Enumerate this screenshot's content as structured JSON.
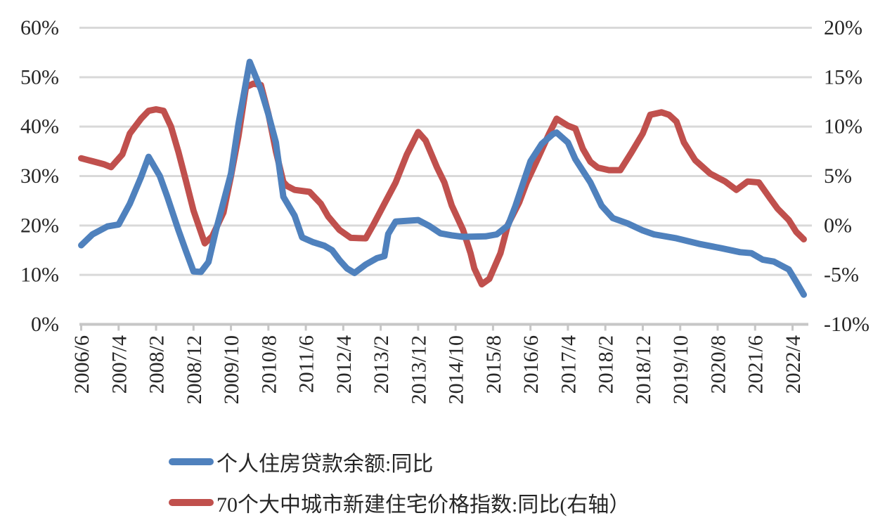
{
  "chart_data": {
    "type": "line",
    "title": "",
    "grid": true,
    "legend_position": "bottom-left",
    "background": "#ffffff",
    "gridline_color": "#d9d9d9",
    "axis_color": "#c6c6c6",
    "tick_label_color": "#262626",
    "x_ticks": [
      "2006/6",
      "2007/4",
      "2008/2",
      "2008/12",
      "2009/10",
      "2010/8",
      "2011/6",
      "2012/4",
      "2013/2",
      "2013/12",
      "2014/10",
      "2015/8",
      "2016/6",
      "2017/4",
      "2018/2",
      "2018/12",
      "2019/10",
      "2020/8",
      "2021/6",
      "2022/4"
    ],
    "y_left": {
      "min": 0,
      "max": 60,
      "step": 10,
      "ticks": [
        "0%",
        "10%",
        "20%",
        "30%",
        "40%",
        "50%",
        "60%"
      ]
    },
    "y_right": {
      "min": -10,
      "max": 20,
      "step": 5,
      "ticks": [
        "-10%",
        "-5%",
        "0%",
        "5%",
        "10%",
        "15%",
        "20%"
      ]
    },
    "series": [
      {
        "label": "个人住房贷款余额:同比",
        "axis": "left",
        "color": "#4f81bd",
        "points": [
          [
            "2006/6",
            16.0
          ],
          [
            "2006/9",
            18.2
          ],
          [
            "2007/1",
            19.8
          ],
          [
            "2007/4",
            20.2
          ],
          [
            "2007/7",
            24.4
          ],
          [
            "2007/10",
            29.8
          ],
          [
            "2007/12",
            33.9
          ],
          [
            "2008/3",
            30.0
          ],
          [
            "2008/5",
            25.8
          ],
          [
            "2008/8",
            19.0
          ],
          [
            "2008/10",
            14.8
          ],
          [
            "2008/12",
            10.7
          ],
          [
            "2009/2",
            10.6
          ],
          [
            "2009/4",
            12.6
          ],
          [
            "2009/6",
            19.0
          ],
          [
            "2009/10",
            30.5
          ],
          [
            "2009/12",
            40.5
          ],
          [
            "2010/3",
            53.1
          ],
          [
            "2010/6",
            47.5
          ],
          [
            "2010/8",
            42.5
          ],
          [
            "2010/10",
            36.8
          ],
          [
            "2010/12",
            25.8
          ],
          [
            "2011/3",
            22.0
          ],
          [
            "2011/5",
            17.6
          ],
          [
            "2011/8",
            16.6
          ],
          [
            "2011/11",
            15.9
          ],
          [
            "2012/1",
            15.0
          ],
          [
            "2012/3",
            13.0
          ],
          [
            "2012/5",
            11.3
          ],
          [
            "2012/7",
            10.4
          ],
          [
            "2012/10",
            12.1
          ],
          [
            "2013/1",
            13.4
          ],
          [
            "2013/3",
            13.8
          ],
          [
            "2013/4",
            18.3
          ],
          [
            "2013/6",
            20.8
          ],
          [
            "2013/12",
            21.1
          ],
          [
            "2014/3",
            19.9
          ],
          [
            "2014/6",
            18.4
          ],
          [
            "2014/9",
            18.0
          ],
          [
            "2014/12",
            17.7
          ],
          [
            "2015/6",
            17.8
          ],
          [
            "2015/9",
            18.2
          ],
          [
            "2015/12",
            20.0
          ],
          [
            "2016/2",
            24.0
          ],
          [
            "2016/4",
            28.5
          ],
          [
            "2016/6",
            33.0
          ],
          [
            "2016/9",
            36.5
          ],
          [
            "2016/12",
            38.5
          ],
          [
            "2017/1",
            38.8
          ],
          [
            "2017/4",
            36.8
          ],
          [
            "2017/6",
            33.4
          ],
          [
            "2017/10",
            28.7
          ],
          [
            "2018/1",
            24.0
          ],
          [
            "2018/4",
            21.5
          ],
          [
            "2018/8",
            20.4
          ],
          [
            "2018/12",
            19.0
          ],
          [
            "2019/3",
            18.2
          ],
          [
            "2019/9",
            17.4
          ],
          [
            "2020/3",
            16.3
          ],
          [
            "2020/9",
            15.4
          ],
          [
            "2021/2",
            14.6
          ],
          [
            "2021/5",
            14.4
          ],
          [
            "2021/8",
            13.1
          ],
          [
            "2021/11",
            12.7
          ],
          [
            "2022/2",
            11.5
          ],
          [
            "2022/3",
            11.1
          ],
          [
            "2022/5",
            8.6
          ],
          [
            "2022/7",
            6.0
          ]
        ]
      },
      {
        "label": "70个大中城市新建住宅价格指数:同比(右轴）",
        "axis": "right",
        "color": "#c0504d",
        "points": [
          [
            "2006/6",
            6.8
          ],
          [
            "2006/9",
            6.5
          ],
          [
            "2006/12",
            6.2
          ],
          [
            "2007/2",
            5.9
          ],
          [
            "2007/5",
            7.2
          ],
          [
            "2007/7",
            9.3
          ],
          [
            "2007/10",
            10.8
          ],
          [
            "2007/12",
            11.6
          ],
          [
            "2008/2",
            11.75
          ],
          [
            "2008/4",
            11.6
          ],
          [
            "2008/6",
            10.0
          ],
          [
            "2008/8",
            7.4
          ],
          [
            "2008/10",
            4.5
          ],
          [
            "2008/12",
            1.5
          ],
          [
            "2009/3",
            -1.8
          ],
          [
            "2009/5",
            -1.1
          ],
          [
            "2009/8",
            1.3
          ],
          [
            "2009/10",
            5.0
          ],
          [
            "2009/12",
            9.0
          ],
          [
            "2010/2",
            14.0
          ],
          [
            "2010/4",
            14.35
          ],
          [
            "2010/6",
            14.2
          ],
          [
            "2010/8",
            11.3
          ],
          [
            "2010/10",
            7.5
          ],
          [
            "2010/12",
            4.4
          ],
          [
            "2011/1",
            4.0
          ],
          [
            "2011/3",
            3.6
          ],
          [
            "2011/7",
            3.4
          ],
          [
            "2011/10",
            2.2
          ],
          [
            "2011/12",
            0.9
          ],
          [
            "2012/3",
            -0.45
          ],
          [
            "2012/6",
            -1.25
          ],
          [
            "2012/10",
            -1.3
          ],
          [
            "2012/12",
            0.05
          ],
          [
            "2013/3",
            2.2
          ],
          [
            "2013/6",
            4.35
          ],
          [
            "2013/9",
            7.2
          ],
          [
            "2013/12",
            9.45
          ],
          [
            "2014/2",
            8.6
          ],
          [
            "2014/5",
            5.9
          ],
          [
            "2014/7",
            4.35
          ],
          [
            "2014/9",
            2.0
          ],
          [
            "2014/12",
            -0.45
          ],
          [
            "2015/2",
            -2.8
          ],
          [
            "2015/3",
            -4.35
          ],
          [
            "2015/5",
            -5.95
          ],
          [
            "2015/7",
            -5.4
          ],
          [
            "2015/10",
            -2.8
          ],
          [
            "2015/12",
            0.1
          ],
          [
            "2016/3",
            2.35
          ],
          [
            "2016/5",
            4.35
          ],
          [
            "2016/8",
            6.8
          ],
          [
            "2016/11",
            9.3
          ],
          [
            "2017/1",
            10.8
          ],
          [
            "2017/4",
            10.1
          ],
          [
            "2017/6",
            9.8
          ],
          [
            "2017/8",
            7.75
          ],
          [
            "2017/10",
            6.45
          ],
          [
            "2017/12",
            5.85
          ],
          [
            "2018/3",
            5.6
          ],
          [
            "2018/6",
            5.6
          ],
          [
            "2018/9",
            7.4
          ],
          [
            "2018/12",
            9.3
          ],
          [
            "2019/2",
            11.2
          ],
          [
            "2019/5",
            11.45
          ],
          [
            "2019/7",
            11.2
          ],
          [
            "2019/9",
            10.5
          ],
          [
            "2019/11",
            8.4
          ],
          [
            "2020/2",
            6.6
          ],
          [
            "2020/6",
            5.25
          ],
          [
            "2020/10",
            4.45
          ],
          [
            "2021/1",
            3.6
          ],
          [
            "2021/4",
            4.45
          ],
          [
            "2021/7",
            4.35
          ],
          [
            "2021/10",
            2.75
          ],
          [
            "2021/12",
            1.7
          ],
          [
            "2022/3",
            0.55
          ],
          [
            "2022/5",
            -0.65
          ],
          [
            "2022/7",
            -1.4
          ]
        ]
      }
    ]
  }
}
